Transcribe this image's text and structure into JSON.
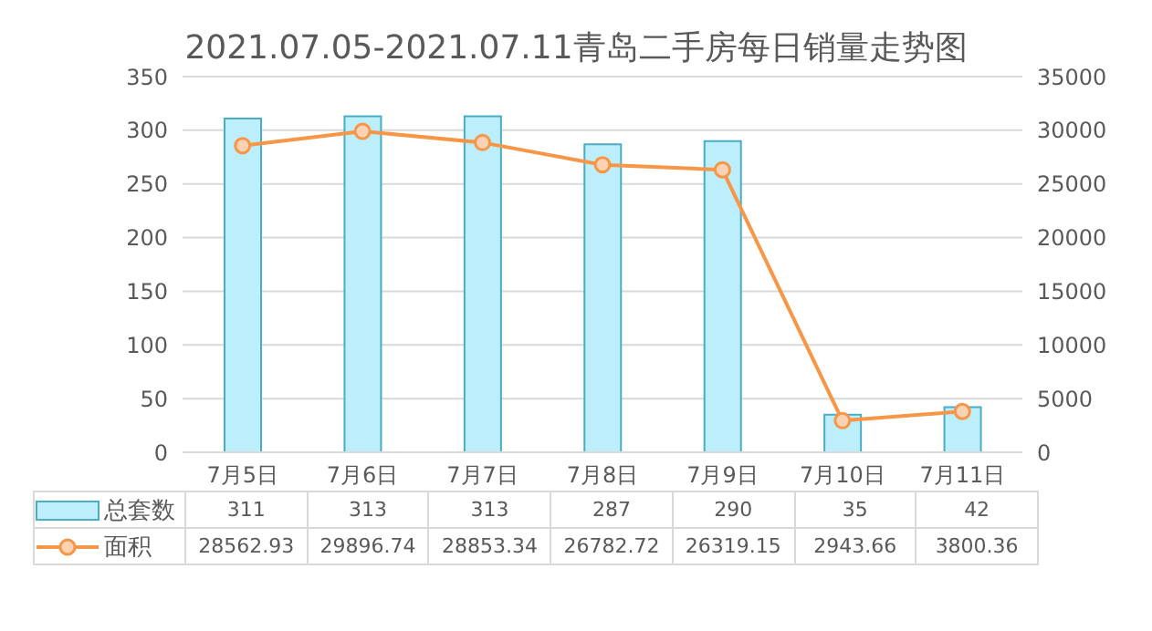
{
  "chart_data": {
    "type": "bar",
    "title": "2021.07.05-2021.07.11青岛二手房每日销量走势图",
    "categories": [
      "7月5日",
      "7月6日",
      "7月7日",
      "7月8日",
      "7月9日",
      "7月10日",
      "7月11日"
    ],
    "series": [
      {
        "name": "总套数",
        "color": "#bdeefb",
        "values": [
          311,
          313,
          313,
          287,
          290,
          35,
          42
        ]
      },
      {
        "name": "面积",
        "type": "line",
        "axis": "y2",
        "color": "#f79646",
        "values": [
          28562.93,
          29896.74,
          28853.34,
          26782.72,
          26319.15,
          2943.66,
          3800.36
        ]
      }
    ],
    "ylim": [
      0,
      350
    ],
    "yticks": [
      0,
      50,
      100,
      150,
      200,
      250,
      300,
      350
    ],
    "y2lim": [
      0,
      35000
    ],
    "y2ticks": [
      0,
      5000,
      10000,
      15000,
      20000,
      25000,
      30000,
      35000
    ],
    "grid": "y",
    "legend": "bottom",
    "marker": "circle",
    "data_labels": true
  }
}
